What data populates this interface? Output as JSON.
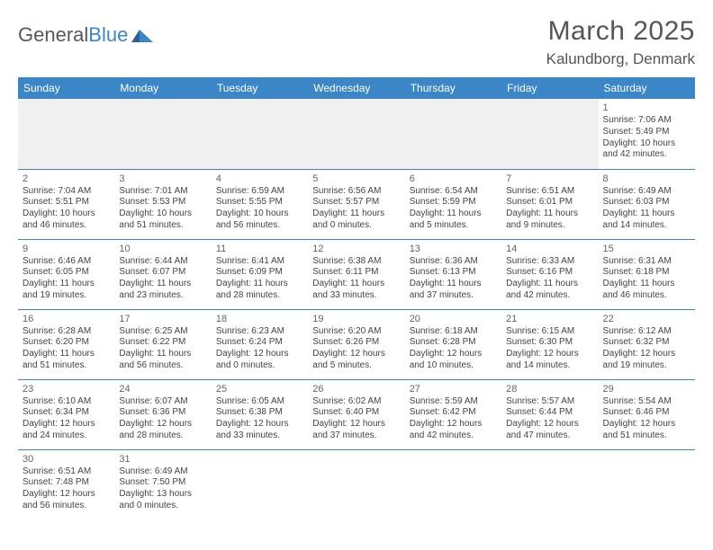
{
  "logo": {
    "word1": "General",
    "word2": "Blue"
  },
  "title": "March 2025",
  "location": "Kalundborg, Denmark",
  "colors": {
    "header_bg": "#3b86c6",
    "header_fg": "#ffffff",
    "grid_line": "#3b86c6",
    "text": "#444444",
    "title_text": "#555555",
    "empty_bg": "#f0f0f0"
  },
  "weekdays": [
    "Sunday",
    "Monday",
    "Tuesday",
    "Wednesday",
    "Thursday",
    "Friday",
    "Saturday"
  ],
  "weeks": [
    [
      null,
      null,
      null,
      null,
      null,
      null,
      {
        "n": 1,
        "sunrise": "7:06 AM",
        "sunset": "5:49 PM",
        "daylight": "10 hours and 42 minutes."
      }
    ],
    [
      {
        "n": 2,
        "sunrise": "7:04 AM",
        "sunset": "5:51 PM",
        "daylight": "10 hours and 46 minutes."
      },
      {
        "n": 3,
        "sunrise": "7:01 AM",
        "sunset": "5:53 PM",
        "daylight": "10 hours and 51 minutes."
      },
      {
        "n": 4,
        "sunrise": "6:59 AM",
        "sunset": "5:55 PM",
        "daylight": "10 hours and 56 minutes."
      },
      {
        "n": 5,
        "sunrise": "6:56 AM",
        "sunset": "5:57 PM",
        "daylight": "11 hours and 0 minutes."
      },
      {
        "n": 6,
        "sunrise": "6:54 AM",
        "sunset": "5:59 PM",
        "daylight": "11 hours and 5 minutes."
      },
      {
        "n": 7,
        "sunrise": "6:51 AM",
        "sunset": "6:01 PM",
        "daylight": "11 hours and 9 minutes."
      },
      {
        "n": 8,
        "sunrise": "6:49 AM",
        "sunset": "6:03 PM",
        "daylight": "11 hours and 14 minutes."
      }
    ],
    [
      {
        "n": 9,
        "sunrise": "6:46 AM",
        "sunset": "6:05 PM",
        "daylight": "11 hours and 19 minutes."
      },
      {
        "n": 10,
        "sunrise": "6:44 AM",
        "sunset": "6:07 PM",
        "daylight": "11 hours and 23 minutes."
      },
      {
        "n": 11,
        "sunrise": "6:41 AM",
        "sunset": "6:09 PM",
        "daylight": "11 hours and 28 minutes."
      },
      {
        "n": 12,
        "sunrise": "6:38 AM",
        "sunset": "6:11 PM",
        "daylight": "11 hours and 33 minutes."
      },
      {
        "n": 13,
        "sunrise": "6:36 AM",
        "sunset": "6:13 PM",
        "daylight": "11 hours and 37 minutes."
      },
      {
        "n": 14,
        "sunrise": "6:33 AM",
        "sunset": "6:16 PM",
        "daylight": "11 hours and 42 minutes."
      },
      {
        "n": 15,
        "sunrise": "6:31 AM",
        "sunset": "6:18 PM",
        "daylight": "11 hours and 46 minutes."
      }
    ],
    [
      {
        "n": 16,
        "sunrise": "6:28 AM",
        "sunset": "6:20 PM",
        "daylight": "11 hours and 51 minutes."
      },
      {
        "n": 17,
        "sunrise": "6:25 AM",
        "sunset": "6:22 PM",
        "daylight": "11 hours and 56 minutes."
      },
      {
        "n": 18,
        "sunrise": "6:23 AM",
        "sunset": "6:24 PM",
        "daylight": "12 hours and 0 minutes."
      },
      {
        "n": 19,
        "sunrise": "6:20 AM",
        "sunset": "6:26 PM",
        "daylight": "12 hours and 5 minutes."
      },
      {
        "n": 20,
        "sunrise": "6:18 AM",
        "sunset": "6:28 PM",
        "daylight": "12 hours and 10 minutes."
      },
      {
        "n": 21,
        "sunrise": "6:15 AM",
        "sunset": "6:30 PM",
        "daylight": "12 hours and 14 minutes."
      },
      {
        "n": 22,
        "sunrise": "6:12 AM",
        "sunset": "6:32 PM",
        "daylight": "12 hours and 19 minutes."
      }
    ],
    [
      {
        "n": 23,
        "sunrise": "6:10 AM",
        "sunset": "6:34 PM",
        "daylight": "12 hours and 24 minutes."
      },
      {
        "n": 24,
        "sunrise": "6:07 AM",
        "sunset": "6:36 PM",
        "daylight": "12 hours and 28 minutes."
      },
      {
        "n": 25,
        "sunrise": "6:05 AM",
        "sunset": "6:38 PM",
        "daylight": "12 hours and 33 minutes."
      },
      {
        "n": 26,
        "sunrise": "6:02 AM",
        "sunset": "6:40 PM",
        "daylight": "12 hours and 37 minutes."
      },
      {
        "n": 27,
        "sunrise": "5:59 AM",
        "sunset": "6:42 PM",
        "daylight": "12 hours and 42 minutes."
      },
      {
        "n": 28,
        "sunrise": "5:57 AM",
        "sunset": "6:44 PM",
        "daylight": "12 hours and 47 minutes."
      },
      {
        "n": 29,
        "sunrise": "5:54 AM",
        "sunset": "6:46 PM",
        "daylight": "12 hours and 51 minutes."
      }
    ],
    [
      {
        "n": 30,
        "sunrise": "6:51 AM",
        "sunset": "7:48 PM",
        "daylight": "12 hours and 56 minutes."
      },
      {
        "n": 31,
        "sunrise": "6:49 AM",
        "sunset": "7:50 PM",
        "daylight": "13 hours and 0 minutes."
      },
      null,
      null,
      null,
      null,
      null
    ]
  ],
  "labels": {
    "sunrise": "Sunrise:",
    "sunset": "Sunset:",
    "daylight": "Daylight:"
  }
}
